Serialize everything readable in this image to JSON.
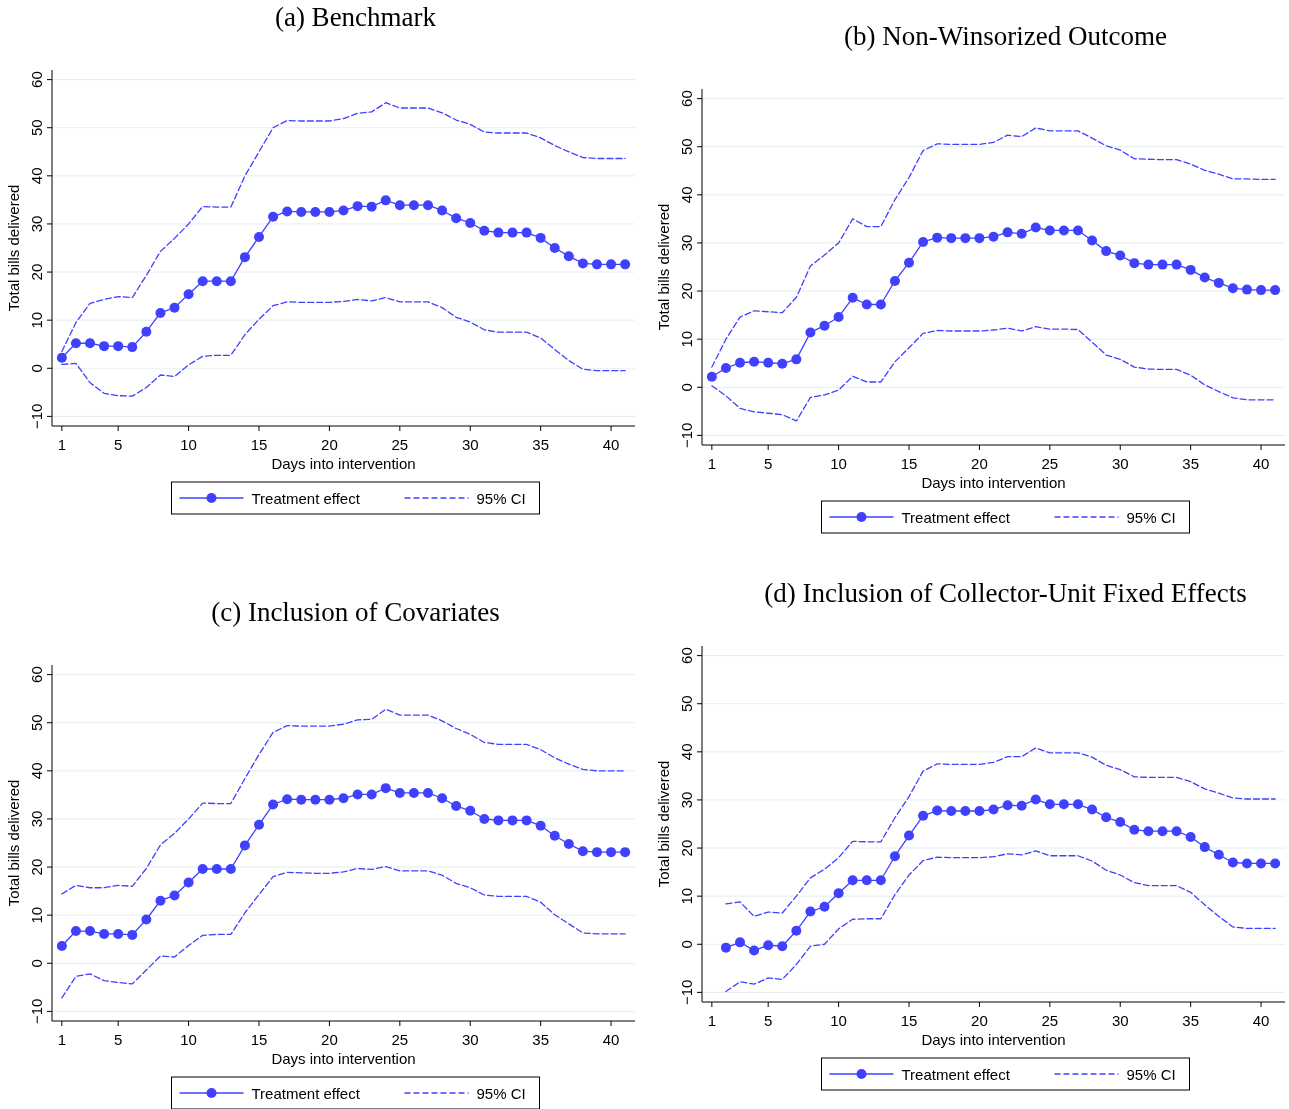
{
  "chart_data": [
    {
      "type": "line",
      "title": "(a) Benchmark",
      "xlabel": "Days into intervention",
      "ylabel": "Total bills delivered",
      "xlim": [
        0.3,
        41.7
      ],
      "xticks": [
        1,
        5,
        10,
        15,
        20,
        25,
        30,
        35,
        40
      ],
      "ylim": [
        -12,
        62
      ],
      "yticks": [
        -10,
        0,
        10,
        20,
        30,
        40,
        50,
        60
      ],
      "grid": "y",
      "legend": "bottom",
      "x": [
        1,
        2,
        3,
        4,
        5,
        6,
        7,
        8,
        9,
        10,
        11,
        12,
        13,
        14,
        15,
        16,
        17,
        18,
        19,
        20,
        21,
        22,
        23,
        24,
        25,
        26,
        27,
        28,
        29,
        30,
        31,
        32,
        33,
        34,
        35,
        36,
        37,
        38,
        39,
        40,
        41
      ],
      "series": [
        {
          "name": "Treatment effect",
          "color": "#4040ff",
          "marker": "circle",
          "line_style": "solid",
          "values": [
            2.2,
            5.2,
            5.2,
            4.6,
            4.6,
            4.4,
            7.6,
            11.5,
            12.6,
            15.4,
            18.1,
            18.1,
            18.1,
            23.1,
            27.3,
            31.5,
            32.6,
            32.5,
            32.5,
            32.5,
            32.8,
            33.7,
            33.6,
            34.9,
            33.9,
            33.9,
            33.9,
            32.8,
            31.2,
            30.2,
            28.6,
            28.2,
            28.2,
            28.2,
            27.1,
            25.0,
            23.3,
            21.8,
            21.6,
            21.6,
            21.6
          ]
        },
        {
          "name": "95% CI",
          "color": "#4040ff",
          "marker": "none",
          "line_style": "dashed",
          "values": [
            3.5,
            9.5,
            13.5,
            14.3,
            14.9,
            14.7,
            19.3,
            24.3,
            27,
            30,
            33.6,
            33.5,
            33.5,
            40,
            45,
            50,
            51.5,
            51.4,
            51.4,
            51.4,
            51.9,
            53,
            53.3,
            55.2,
            54.1,
            54.1,
            54.1,
            53.1,
            51.6,
            50.7,
            49.1,
            48.9,
            48.9,
            48.9,
            47.9,
            46.3,
            45,
            43.8,
            43.6,
            43.6,
            43.6
          ]
        },
        {
          "color": "#4040ff",
          "marker": "none",
          "line_style": "dashed",
          "values": [
            0.8,
            1,
            -3,
            -5.2,
            -5.7,
            -5.8,
            -4,
            -1.4,
            -1.7,
            0.7,
            2.5,
            2.7,
            2.7,
            7,
            10.2,
            13,
            13.8,
            13.7,
            13.7,
            13.7,
            13.9,
            14.3,
            14,
            14.7,
            13.8,
            13.8,
            13.8,
            12.6,
            10.6,
            9.6,
            8,
            7.5,
            7.5,
            7.5,
            6.3,
            3.9,
            1.6,
            -0.2,
            -0.5,
            -0.5,
            -0.5
          ]
        }
      ]
    },
    {
      "type": "line",
      "title": "(b) Non-Winsorized Outcome",
      "xlabel": "Days into intervention",
      "ylabel": "Total bills delivered",
      "xlim": [
        0.3,
        41.7
      ],
      "xticks": [
        1,
        5,
        10,
        15,
        20,
        25,
        30,
        35,
        40
      ],
      "ylim": [
        -12,
        62
      ],
      "yticks": [
        -10,
        0,
        10,
        20,
        30,
        40,
        50,
        60
      ],
      "grid": "y",
      "legend": "bottom",
      "x": [
        1,
        2,
        3,
        4,
        5,
        6,
        7,
        8,
        9,
        10,
        11,
        12,
        13,
        14,
        15,
        16,
        17,
        18,
        19,
        20,
        21,
        22,
        23,
        24,
        25,
        26,
        27,
        28,
        29,
        30,
        31,
        32,
        33,
        34,
        35,
        36,
        37,
        38,
        39,
        40,
        41
      ],
      "series": [
        {
          "name": "Treatment effect",
          "color": "#4040ff",
          "marker": "circle",
          "line_style": "solid",
          "values": [
            2.2,
            4,
            5.1,
            5.3,
            5.1,
            4.9,
            5.8,
            11.4,
            12.8,
            14.6,
            18.6,
            17.2,
            17.2,
            22.1,
            25.9,
            30.2,
            31.1,
            31,
            31,
            31,
            31.3,
            32.2,
            31.9,
            33.2,
            32.6,
            32.6,
            32.6,
            30.5,
            28.3,
            27.4,
            25.8,
            25.5,
            25.5,
            25.5,
            24.4,
            22.8,
            21.7,
            20.6,
            20.3,
            20.2,
            20.2
          ]
        },
        {
          "name": "95% CI",
          "color": "#4040ff",
          "marker": "none",
          "line_style": "dashed",
          "values": [
            4.2,
            10,
            14.6,
            15.9,
            15.7,
            15.5,
            18.7,
            25.2,
            27.5,
            30,
            35,
            33.4,
            33.4,
            39,
            43.6,
            49.2,
            50.6,
            50.5,
            50.5,
            50.5,
            50.9,
            52.4,
            52.1,
            53.9,
            53.3,
            53.3,
            53.3,
            51.8,
            50.2,
            49.3,
            47.5,
            47.4,
            47.3,
            47.3,
            46.4,
            45.1,
            44.3,
            43.3,
            43.3,
            43.2,
            43.2
          ]
        },
        {
          "color": "#4040ff",
          "marker": "none",
          "line_style": "dashed",
          "values": [
            0.3,
            -1.8,
            -4.4,
            -5.1,
            -5.4,
            -5.7,
            -7,
            -2.1,
            -1.6,
            -0.6,
            2.3,
            1.1,
            1.1,
            5.3,
            8.2,
            11.2,
            11.8,
            11.7,
            11.7,
            11.7,
            11.9,
            12.3,
            11.7,
            12.6,
            12.1,
            12.1,
            12,
            9.4,
            6.7,
            5.8,
            4.2,
            3.8,
            3.7,
            3.7,
            2.5,
            0.5,
            -0.9,
            -2.2,
            -2.6,
            -2.6,
            -2.6
          ]
        }
      ]
    },
    {
      "type": "line",
      "title": "(c) Inclusion of Covariates",
      "xlabel": "Days into intervention",
      "ylabel": "Total bills delivered",
      "xlim": [
        0.3,
        41.7
      ],
      "xticks": [
        1,
        5,
        10,
        15,
        20,
        25,
        30,
        35,
        40
      ],
      "ylim": [
        -12,
        62
      ],
      "yticks": [
        -10,
        0,
        10,
        20,
        30,
        40,
        50,
        60
      ],
      "grid": "y",
      "legend": "bottom",
      "x": [
        1,
        2,
        3,
        4,
        5,
        6,
        7,
        8,
        9,
        10,
        11,
        12,
        13,
        14,
        15,
        16,
        17,
        18,
        19,
        20,
        21,
        22,
        23,
        24,
        25,
        26,
        27,
        28,
        29,
        30,
        31,
        32,
        33,
        34,
        35,
        36,
        37,
        38,
        39,
        40,
        41
      ],
      "series": [
        {
          "name": "Treatment effect",
          "color": "#4040ff",
          "marker": "circle",
          "line_style": "solid",
          "values": [
            3.6,
            6.7,
            6.7,
            6.1,
            6.1,
            5.9,
            9.1,
            13,
            14.1,
            16.8,
            19.6,
            19.6,
            19.6,
            24.5,
            28.8,
            33,
            34.1,
            34,
            34,
            34,
            34.3,
            35.1,
            35.1,
            36.4,
            35.4,
            35.4,
            35.4,
            34.3,
            32.7,
            31.7,
            30,
            29.7,
            29.7,
            29.7,
            28.6,
            26.5,
            24.8,
            23.3,
            23.1,
            23.1,
            23.1
          ]
        },
        {
          "name": "95% CI",
          "color": "#4040ff",
          "marker": "none",
          "line_style": "dashed",
          "values": [
            14.4,
            16.2,
            15.7,
            15.7,
            16.2,
            16,
            19.7,
            24.6,
            27,
            30,
            33.3,
            33.2,
            33.2,
            38.4,
            43.4,
            48,
            49.4,
            49.3,
            49.3,
            49.3,
            49.7,
            50.6,
            50.7,
            52.8,
            51.6,
            51.6,
            51.6,
            50.4,
            48.8,
            47.6,
            45.9,
            45.5,
            45.5,
            45.5,
            44.4,
            42.7,
            41.4,
            40.3,
            40,
            40,
            40
          ]
        },
        {
          "color": "#4040ff",
          "marker": "none",
          "line_style": "dashed",
          "values": [
            -7.2,
            -2.7,
            -2.2,
            -3.6,
            -4,
            -4.3,
            -1.4,
            1.5,
            1.3,
            3.7,
            5.8,
            6,
            6,
            10.5,
            14.3,
            18,
            18.9,
            18.8,
            18.7,
            18.7,
            19,
            19.7,
            19.5,
            20.1,
            19.2,
            19.2,
            19.2,
            18.3,
            16.6,
            15.7,
            14.2,
            13.9,
            13.9,
            13.9,
            12.7,
            10.1,
            8.2,
            6.3,
            6.1,
            6.1,
            6.1
          ]
        }
      ]
    },
    {
      "type": "line",
      "title": "(d) Inclusion of Collector-Unit Fixed Effects",
      "xlabel": "Days into intervention",
      "ylabel": "Total bills delivered",
      "xlim": [
        0.3,
        41.7
      ],
      "xticks": [
        1,
        5,
        10,
        15,
        20,
        25,
        30,
        35,
        40
      ],
      "ylim": [
        -12,
        62
      ],
      "yticks": [
        -10,
        0,
        10,
        20,
        30,
        40,
        50,
        60
      ],
      "grid": "y",
      "legend": "bottom",
      "x": [
        2,
        3,
        4,
        5,
        6,
        7,
        8,
        9,
        10,
        11,
        12,
        13,
        14,
        15,
        16,
        17,
        18,
        19,
        20,
        21,
        22,
        23,
        24,
        25,
        26,
        27,
        28,
        29,
        30,
        31,
        32,
        33,
        34,
        35,
        36,
        37,
        38,
        39,
        40,
        41
      ],
      "series": [
        {
          "name": "Treatment effect",
          "color": "#4040ff",
          "marker": "circle",
          "line_style": "solid",
          "values": [
            -0.7,
            0.4,
            -1.3,
            -0.2,
            -0.4,
            2.8,
            6.8,
            7.8,
            10.6,
            13.3,
            13.3,
            13.3,
            18.3,
            22.6,
            26.7,
            27.8,
            27.7,
            27.7,
            27.7,
            28,
            28.9,
            28.8,
            30.1,
            29.1,
            29.1,
            29.1,
            28,
            26.4,
            25.4,
            23.8,
            23.5,
            23.5,
            23.5,
            22.3,
            20.2,
            18.6,
            17,
            16.8,
            16.8,
            16.8
          ]
        },
        {
          "name": "95% CI",
          "color": "#4040ff",
          "marker": "none",
          "line_style": "dashed",
          "values": [
            8.4,
            8.8,
            5.8,
            6.7,
            6.5,
            10,
            13.8,
            15.6,
            18,
            21.4,
            21.3,
            21.3,
            26.3,
            30.7,
            36,
            37.5,
            37.4,
            37.4,
            37.4,
            37.8,
            39,
            39,
            40.8,
            39.8,
            39.8,
            39.8,
            38.9,
            37.2,
            36.3,
            34.8,
            34.7,
            34.7,
            34.7,
            33.8,
            32.3,
            31.4,
            30.4,
            30.2,
            30.2,
            30.2
          ]
        },
        {
          "color": "#4040ff",
          "marker": "none",
          "line_style": "dashed",
          "values": [
            -9.8,
            -7.8,
            -8.3,
            -7,
            -7.3,
            -4.2,
            -0.4,
            0,
            3.2,
            5.2,
            5.3,
            5.3,
            10.3,
            14.4,
            17.4,
            18.1,
            18,
            18,
            18,
            18.2,
            18.8,
            18.6,
            19.4,
            18.4,
            18.4,
            18.4,
            17.3,
            15.4,
            14.4,
            12.8,
            12.2,
            12.2,
            12.2,
            10.8,
            8.2,
            5.8,
            3.6,
            3.3,
            3.3,
            3.3
          ]
        }
      ]
    }
  ]
}
